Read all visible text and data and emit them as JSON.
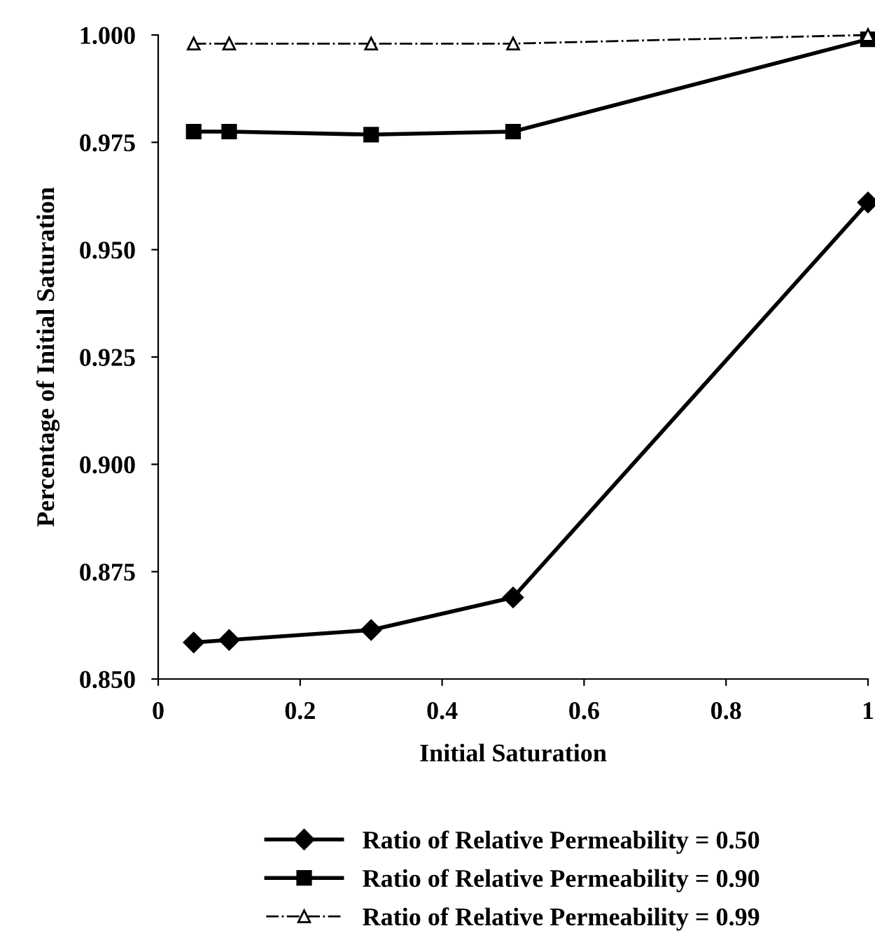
{
  "chart_data": {
    "type": "line",
    "xlabel": "Initial Saturation",
    "ylabel": "Percentage of Initial Saturation",
    "x": [
      0.05,
      0.1,
      0.3,
      0.5,
      1.0
    ],
    "series": [
      {
        "name": "Ratio of Relative Permeability = 0.50",
        "color": "#000000",
        "marker": "diamond",
        "line_style": "solid",
        "values": [
          0.8585,
          0.8591,
          0.8614,
          0.869,
          0.961
        ]
      },
      {
        "name": "Ratio of Relative Permeability = 0.90",
        "color": "#000000",
        "marker": "square",
        "line_style": "solid",
        "values": [
          0.9775,
          0.9775,
          0.9768,
          0.9775,
          0.999
        ]
      },
      {
        "name": "Ratio of Relative Permeability = 0.99",
        "color": "#000000",
        "marker": "triangle",
        "line_style": "dashdot",
        "values": [
          0.998,
          0.998,
          0.998,
          0.998,
          1.0
        ]
      }
    ],
    "xlim": [
      0,
      1
    ],
    "xticks": [
      0,
      0.2,
      0.4,
      0.6,
      0.8,
      1
    ],
    "ylim": [
      0.85,
      1.0
    ],
    "yticks": [
      {
        "value": 0.85,
        "label": "0.850"
      },
      {
        "value": 0.875,
        "label": "0.875"
      },
      {
        "value": 0.9,
        "label": "0.900"
      },
      {
        "value": 0.925,
        "label": "0.925"
      },
      {
        "value": 0.95,
        "label": "0.950"
      },
      {
        "value": 0.975,
        "label": "0.975"
      },
      {
        "value": 1.0,
        "label": "1.000"
      }
    ],
    "grid": false,
    "legend": "bottom"
  }
}
